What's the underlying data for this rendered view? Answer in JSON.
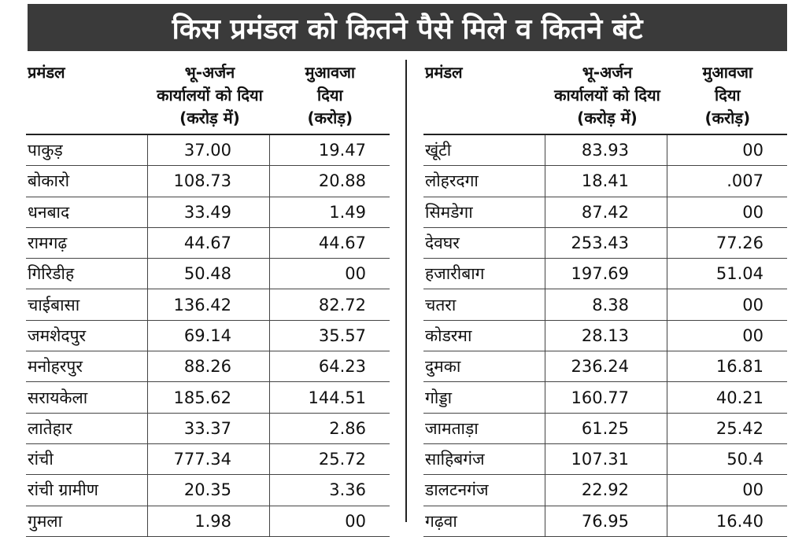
{
  "title": "किस प्रमंडल को कितने पैसे मिले व कितने बंटे",
  "headers": {
    "division": "प्रमंडल",
    "land_acq": [
      "भू-अर्जन",
      "कार्यालयों को दिया",
      "(करोड़ में)"
    ],
    "compensation": [
      "मुआवजा",
      "दिया",
      "(करोड़)"
    ]
  },
  "left_rows": [
    {
      "name": "पाकुड़",
      "given": "37.00",
      "paid": "19.47"
    },
    {
      "name": "बोकारो",
      "given": "108.73",
      "paid": "20.88"
    },
    {
      "name": "धनबाद",
      "given": "33.49",
      "paid": "1.49"
    },
    {
      "name": "रामगढ़",
      "given": "44.67",
      "paid": "44.67"
    },
    {
      "name": "गिरिडीह",
      "given": "50.48",
      "paid": "00"
    },
    {
      "name": "चाईबासा",
      "given": "136.42",
      "paid": "82.72"
    },
    {
      "name": "जमशेदपुर",
      "given": "69.14",
      "paid": "35.57"
    },
    {
      "name": "मनोहरपुर",
      "given": "88.26",
      "paid": "64.23"
    },
    {
      "name": "सरायकेला",
      "given": "185.62",
      "paid": "144.51"
    },
    {
      "name": "लातेहार",
      "given": "33.37",
      "paid": "2.86"
    },
    {
      "name": "रांची",
      "given": "777.34",
      "paid": "25.72"
    },
    {
      "name": "रांची ग्रामीण",
      "given": "20.35",
      "paid": "3.36"
    },
    {
      "name": "गुमला",
      "given": "1.98",
      "paid": "00"
    }
  ],
  "right_rows": [
    {
      "name": "खूंटी",
      "given": "83.93",
      "paid": "00"
    },
    {
      "name": "लोहरदगा",
      "given": "18.41",
      "paid": ".007"
    },
    {
      "name": "सिमडेगा",
      "given": "87.42",
      "paid": "00"
    },
    {
      "name": "देवघर",
      "given": "253.43",
      "paid": "77.26"
    },
    {
      "name": "हजारीबाग",
      "given": "197.69",
      "paid": "51.04"
    },
    {
      "name": "चतरा",
      "given": "8.38",
      "paid": "00"
    },
    {
      "name": "कोडरमा",
      "given": "28.13",
      "paid": "00"
    },
    {
      "name": "दुमका",
      "given": "236.24",
      "paid": "16.81"
    },
    {
      "name": "गोड्डा",
      "given": "160.77",
      "paid": "40.21"
    },
    {
      "name": "जामताड़ा",
      "given": "61.25",
      "paid": "25.42"
    },
    {
      "name": "साहिबगंज",
      "given": "107.31",
      "paid": "50.4"
    },
    {
      "name": "डालटनगंज",
      "given": "22.92",
      "paid": "00"
    },
    {
      "name": "गढ़वा",
      "given": "76.95",
      "paid": "16.40"
    }
  ]
}
